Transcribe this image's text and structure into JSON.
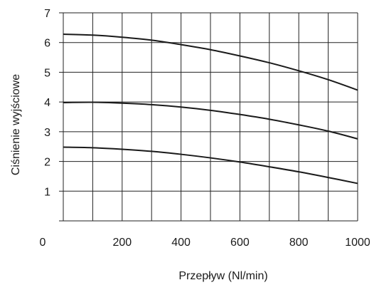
{
  "chart_data": {
    "type": "line",
    "xlabel": "Przepływ (Nl/min)",
    "ylabel": "Ciśnienie wyjściowe",
    "xlim": [
      0,
      1000
    ],
    "ylim": [
      0,
      7
    ],
    "x_ticks": [
      0,
      200,
      400,
      600,
      800,
      1000
    ],
    "y_ticks": [
      1,
      2,
      3,
      4,
      5,
      6,
      7
    ],
    "grid": true,
    "series": [
      {
        "x": [
          0,
          100,
          200,
          300,
          400,
          500,
          600,
          700,
          800,
          900,
          1000
        ],
        "y": [
          6.28,
          6.25,
          6.18,
          6.08,
          5.93,
          5.76,
          5.55,
          5.32,
          5.05,
          4.75,
          4.4
        ]
      },
      {
        "x": [
          0,
          100,
          200,
          300,
          400,
          500,
          600,
          700,
          800,
          900,
          1000
        ],
        "y": [
          3.98,
          3.99,
          3.96,
          3.91,
          3.83,
          3.72,
          3.58,
          3.42,
          3.23,
          3.02,
          2.76
        ]
      },
      {
        "x": [
          0,
          100,
          200,
          300,
          400,
          500,
          600,
          700,
          800,
          900,
          1000
        ],
        "y": [
          2.48,
          2.46,
          2.41,
          2.34,
          2.24,
          2.12,
          1.98,
          1.82,
          1.65,
          1.46,
          1.26
        ]
      }
    ]
  }
}
